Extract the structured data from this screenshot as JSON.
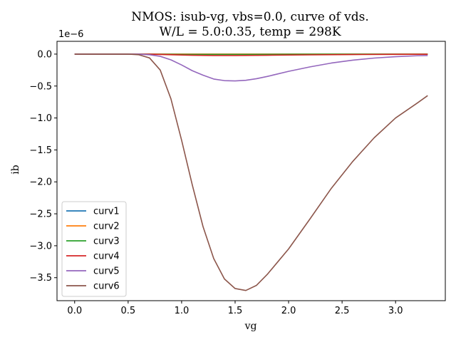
{
  "chart_data": {
    "type": "line",
    "title": [
      "NMOS: isub-vg, vbs=0.0, curve of vds.",
      "W/L = 5.0:0.35, temp = 298K"
    ],
    "xlabel": "vg",
    "ylabel": "ib",
    "y_offset_label": "1e−6",
    "xlim": [
      -0.165,
      3.465
    ],
    "ylim": [
      -3.86,
      0.2
    ],
    "xticks": [
      0.0,
      0.5,
      1.0,
      1.5,
      2.0,
      2.5,
      3.0
    ],
    "xtick_labels": [
      "0.0",
      "0.5",
      "1.0",
      "1.5",
      "2.0",
      "2.5",
      "3.0"
    ],
    "yticks": [
      0.0,
      -0.5,
      -1.0,
      -1.5,
      -2.0,
      -2.5,
      -3.0,
      -3.5
    ],
    "ytick_labels": [
      "0.0",
      "−0.5",
      "−1.0",
      "−1.5",
      "−2.0",
      "−2.5",
      "−3.0",
      "−3.5"
    ],
    "grid": false,
    "legend_position": "lower-left",
    "series": [
      {
        "name": "curv1",
        "color": "#1f77b4",
        "x": [
          0.0,
          0.5,
          1.0,
          1.5,
          2.0,
          2.5,
          3.0,
          3.3
        ],
        "y": [
          0.0,
          0.0,
          0.0,
          0.0,
          0.0,
          0.0,
          0.0,
          0.0
        ]
      },
      {
        "name": "curv2",
        "color": "#ff7f0e",
        "x": [
          0.0,
          0.5,
          1.0,
          1.5,
          2.0,
          2.5,
          3.0,
          3.3
        ],
        "y": [
          0.0,
          0.0,
          0.0,
          0.0,
          0.0,
          0.0,
          0.0,
          0.0
        ]
      },
      {
        "name": "curv3",
        "color": "#2ca02c",
        "x": [
          0.0,
          0.5,
          0.7,
          0.9,
          1.1,
          1.3,
          1.6,
          2.0,
          2.5,
          3.0,
          3.3
        ],
        "y": [
          0.0,
          0.0,
          -0.001,
          -0.004,
          -0.006,
          -0.006,
          -0.005,
          -0.003,
          -0.002,
          -0.001,
          -0.001
        ]
      },
      {
        "name": "curv4",
        "color": "#d62728",
        "x": [
          0.0,
          0.5,
          0.7,
          0.9,
          1.1,
          1.3,
          1.5,
          1.8,
          2.2,
          2.6,
          3.0,
          3.3
        ],
        "y": [
          0.0,
          0.0,
          -0.002,
          -0.01,
          -0.018,
          -0.022,
          -0.022,
          -0.018,
          -0.012,
          -0.007,
          -0.004,
          -0.003
        ]
      },
      {
        "name": "curv5",
        "color": "#9467bd",
        "x": [
          0.0,
          0.5,
          0.6,
          0.7,
          0.8,
          0.9,
          1.0,
          1.1,
          1.2,
          1.3,
          1.4,
          1.5,
          1.6,
          1.7,
          1.8,
          2.0,
          2.2,
          2.4,
          2.6,
          2.8,
          3.0,
          3.2,
          3.3
        ],
        "y": [
          0.0,
          0.0,
          -0.002,
          -0.01,
          -0.035,
          -0.09,
          -0.17,
          -0.26,
          -0.33,
          -0.39,
          -0.415,
          -0.42,
          -0.41,
          -0.385,
          -0.35,
          -0.27,
          -0.2,
          -0.14,
          -0.095,
          -0.062,
          -0.04,
          -0.026,
          -0.022
        ]
      },
      {
        "name": "curv6",
        "color": "#8c564b",
        "x": [
          0.0,
          0.5,
          0.6,
          0.7,
          0.8,
          0.9,
          1.0,
          1.1,
          1.2,
          1.3,
          1.4,
          1.5,
          1.6,
          1.7,
          1.8,
          1.9,
          2.0,
          2.2,
          2.4,
          2.6,
          2.8,
          3.0,
          3.2,
          3.3
        ],
        "y": [
          0.0,
          0.0,
          -0.01,
          -0.06,
          -0.25,
          -0.7,
          -1.35,
          -2.05,
          -2.7,
          -3.2,
          -3.52,
          -3.67,
          -3.7,
          -3.62,
          -3.45,
          -3.25,
          -3.05,
          -2.58,
          -2.1,
          -1.68,
          -1.31,
          -1.0,
          -0.77,
          -0.65
        ]
      }
    ]
  }
}
